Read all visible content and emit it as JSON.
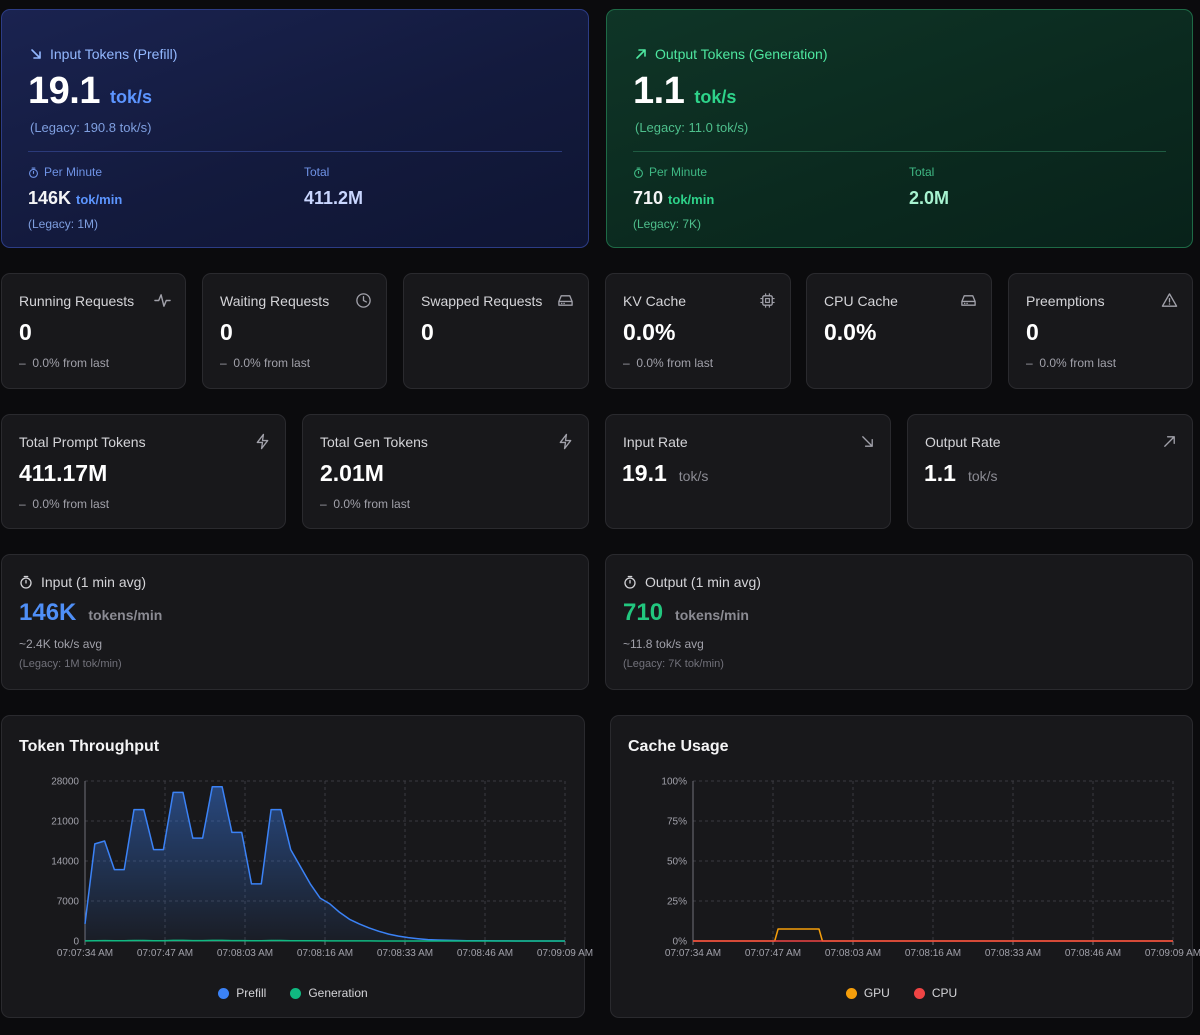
{
  "colors": {
    "prefill": "#3b82f6",
    "generation": "#10b981",
    "gpu": "#f59e0b",
    "cpu": "#ef4444"
  },
  "input_hero": {
    "icon": "arrow-down-right-icon",
    "title": "Input Tokens (Prefill)",
    "value": "19.1",
    "unit": "tok/s",
    "legacy": "(Legacy: 190.8 tok/s)",
    "per_minute_label": "Per Minute",
    "per_minute_value": "146K",
    "per_minute_unit": "tok/min",
    "per_minute_legacy": "(Legacy: 1M)",
    "total_label": "Total",
    "total_value": "411.2M"
  },
  "output_hero": {
    "icon": "arrow-up-right-icon",
    "title": "Output Tokens (Generation)",
    "value": "1.1",
    "unit": "tok/s",
    "legacy": "(Legacy: 11.0 tok/s)",
    "per_minute_label": "Per Minute",
    "per_minute_value": "710",
    "per_minute_unit": "tok/min",
    "per_minute_legacy": "(Legacy: 7K)",
    "total_label": "Total",
    "total_value": "2.0M"
  },
  "stats": {
    "running": {
      "label": "Running Requests",
      "value": "0",
      "change": "0.0% from last",
      "icon": "activity-icon"
    },
    "waiting": {
      "label": "Waiting Requests",
      "value": "0",
      "change": "0.0% from last",
      "icon": "clock-icon"
    },
    "swapped": {
      "label": "Swapped Requests",
      "value": "0",
      "icon": "hard-drive-icon"
    },
    "kv_cache": {
      "label": "KV Cache",
      "value": "0.0%",
      "change": "0.0% from last",
      "icon": "cpu-chip-icon"
    },
    "cpu_cache": {
      "label": "CPU Cache",
      "value": "0.0%",
      "icon": "hard-drive-icon"
    },
    "preemptions": {
      "label": "Preemptions",
      "value": "0",
      "change": "0.0% from last",
      "icon": "warning-triangle-icon"
    },
    "total_prompt": {
      "label": "Total Prompt Tokens",
      "value": "411.17M",
      "change": "0.0% from last",
      "icon": "lightning-icon"
    },
    "total_gen": {
      "label": "Total Gen Tokens",
      "value": "2.01M",
      "change": "0.0% from last",
      "icon": "lightning-icon"
    },
    "input_rate": {
      "label": "Input Rate",
      "value": "19.1",
      "unit": "tok/s",
      "icon": "arrow-down-right-icon"
    },
    "output_rate": {
      "label": "Output Rate",
      "value": "1.1",
      "unit": "tok/s",
      "icon": "arrow-up-right-icon"
    }
  },
  "avg": {
    "input": {
      "label": "Input (1 min avg)",
      "value": "146K",
      "unit": "tokens/min",
      "sub": "~2.4K tok/s avg",
      "legacy": "(Legacy: 1M tok/min)"
    },
    "output": {
      "label": "Output (1 min avg)",
      "value": "710",
      "unit": "tokens/min",
      "sub": "~11.8 tok/s avg",
      "legacy": "(Legacy: 7K tok/min)"
    }
  },
  "chart_data": [
    {
      "type": "area",
      "title": "Token Throughput",
      "x_ticks": [
        "07:07:34 AM",
        "07:07:47 AM",
        "07:08:03 AM",
        "07:08:16 AM",
        "07:08:33 AM",
        "07:08:46 AM",
        "07:09:09 AM"
      ],
      "y_ticks": [
        "0",
        "7000",
        "14000",
        "21000",
        "28000"
      ],
      "ylim": [
        0,
        28000
      ],
      "grid": true,
      "legend_position": "bottom",
      "series": [
        {
          "name": "Prefill",
          "color": "#3b82f6",
          "values": [
            3000,
            17000,
            17500,
            12500,
            12500,
            23000,
            23000,
            16000,
            16000,
            26000,
            26000,
            18000,
            18000,
            27000,
            27000,
            19000,
            19000,
            10000,
            10000,
            23000,
            23000,
            16000,
            13000,
            10000,
            7500,
            6500,
            5000,
            3800,
            3000,
            2300,
            1700,
            1200,
            850,
            600,
            400,
            250,
            180,
            120,
            80,
            60,
            40,
            30,
            20,
            10,
            8,
            5,
            3,
            2,
            1,
            0
          ]
        },
        {
          "name": "Generation",
          "color": "#10b981",
          "values": [
            10,
            60,
            70,
            50,
            50,
            90,
            90,
            60,
            60,
            100,
            100,
            70,
            70,
            100,
            100,
            70,
            70,
            40,
            40,
            90,
            90,
            60,
            50,
            40,
            30,
            25,
            20,
            15,
            12,
            9,
            7,
            5,
            4,
            3,
            2,
            1,
            1,
            1,
            0,
            0,
            0,
            0,
            0,
            0,
            0,
            0,
            0,
            0,
            0,
            0
          ]
        }
      ]
    },
    {
      "type": "line",
      "title": "Cache Usage",
      "x_ticks": [
        "07:07:34 AM",
        "07:07:47 AM",
        "07:08:03 AM",
        "07:08:16 AM",
        "07:08:33 AM",
        "07:08:46 AM",
        "07:09:09 AM"
      ],
      "y_ticks": [
        "0%",
        "25%",
        "50%",
        "75%",
        "100%"
      ],
      "ylim": [
        0,
        100
      ],
      "grid": true,
      "legend_position": "bottom",
      "series": [
        {
          "name": "GPU",
          "color": "#f59e0b",
          "values": [
            0,
            0,
            0,
            0,
            0,
            0,
            0,
            0,
            0,
            0,
            0,
            0,
            0,
            0,
            0,
            0,
            0,
            0,
            0,
            0,
            0,
            0,
            0,
            0,
            0,
            7.5,
            7.5,
            7.5,
            7.5,
            7.5,
            7.5,
            7.5,
            7.5,
            7.5,
            7.5,
            7.5,
            7.5,
            7.5,
            0,
            0,
            0,
            0,
            0,
            0,
            0,
            0,
            0,
            0,
            0,
            0,
            0,
            0,
            0,
            0,
            0,
            0,
            0,
            0,
            0,
            0,
            0,
            0,
            0,
            0,
            0,
            0,
            0,
            0,
            0,
            0,
            0,
            0,
            0,
            0,
            0,
            0,
            0,
            0,
            0,
            0,
            0,
            0,
            0,
            0,
            0,
            0,
            0,
            0,
            0,
            0,
            0,
            0,
            0,
            0,
            0,
            0,
            0,
            0,
            0,
            0,
            0,
            0,
            0,
            0,
            0,
            0,
            0,
            0,
            0,
            0,
            0,
            0,
            0,
            0,
            0,
            0,
            0,
            0,
            0,
            0,
            0,
            0,
            0,
            0,
            0,
            0,
            0,
            0,
            0,
            0,
            0,
            0,
            0,
            0,
            0,
            0,
            0,
            0,
            0,
            0,
            0,
            0
          ]
        },
        {
          "name": "CPU",
          "color": "#ef4444",
          "values": [
            0,
            0,
            0,
            0,
            0,
            0,
            0,
            0,
            0,
            0,
            0,
            0,
            0,
            0,
            0,
            0,
            0,
            0,
            0,
            0,
            0,
            0,
            0,
            0,
            0,
            0,
            0,
            0,
            0,
            0,
            0,
            0,
            0,
            0,
            0,
            0,
            0,
            0,
            0,
            0,
            0,
            0,
            0,
            0,
            0,
            0,
            0,
            0,
            0,
            0,
            0,
            0,
            0,
            0,
            0,
            0,
            0,
            0,
            0,
            0,
            0,
            0,
            0,
            0,
            0,
            0,
            0,
            0,
            0,
            0,
            0,
            0,
            0,
            0,
            0,
            0,
            0,
            0,
            0,
            0,
            0,
            0,
            0,
            0,
            0,
            0,
            0,
            0,
            0,
            0,
            0,
            0,
            0,
            0,
            0,
            0,
            0,
            0,
            0,
            0,
            0,
            0,
            0,
            0,
            0,
            0,
            0,
            0,
            0,
            0,
            0,
            0,
            0,
            0,
            0,
            0,
            0,
            0,
            0,
            0,
            0,
            0,
            0,
            0,
            0,
            0,
            0,
            0,
            0,
            0,
            0,
            0,
            0,
            0,
            0,
            0,
            0,
            0,
            0,
            0,
            0,
            0,
            0,
            0
          ]
        }
      ]
    }
  ]
}
